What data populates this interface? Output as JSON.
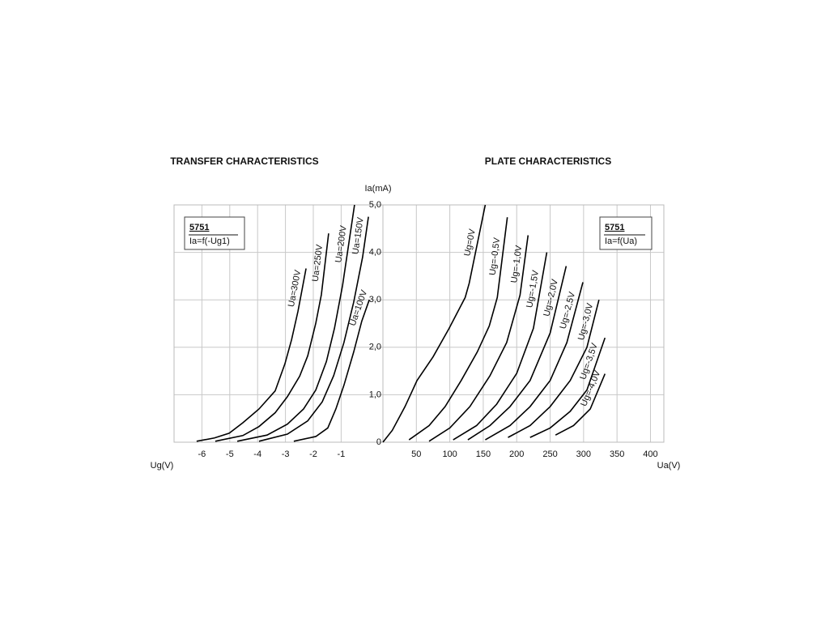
{
  "chart_data": [
    {
      "type": "line",
      "title": "TRANSFER CHARACTERISTICS",
      "x_label": "Ug(V)",
      "xlim": [
        -7,
        0.5
      ],
      "xticks": [
        -6,
        -5,
        -4,
        -3,
        -2,
        -1
      ],
      "ylim": [
        0,
        5
      ],
      "grid": true,
      "color": "#000000",
      "label_box": {
        "title": "5751",
        "formula": "Ia=f(-Ug1)"
      },
      "series": [
        {
          "name": "Ua=300V",
          "x": [
            -6.19,
            -5.55,
            -5.02,
            -4.53,
            -3.95,
            -3.37,
            -3.02,
            -2.78,
            -2.55,
            -2.26
          ],
          "values": [
            0.02,
            0.09,
            0.19,
            0.41,
            0.7,
            1.08,
            1.65,
            2.16,
            2.76,
            3.66
          ]
        },
        {
          "name": "Ua=250V",
          "x": [
            -5.52,
            -4.53,
            -3.95,
            -3.37,
            -2.93,
            -2.49,
            -2.2,
            -1.91,
            -1.71,
            -1.45
          ],
          "values": [
            0.02,
            0.14,
            0.33,
            0.62,
            0.96,
            1.39,
            1.82,
            2.51,
            3.11,
            4.4
          ]
        },
        {
          "name": "Ua=200V",
          "x": [
            -4.73,
            -3.66,
            -2.93,
            -2.35,
            -1.91,
            -1.53,
            -1.24,
            -0.95,
            -0.52
          ],
          "values": [
            0.02,
            0.15,
            0.38,
            0.7,
            1.1,
            1.7,
            2.4,
            3.3,
            5.0
          ]
        },
        {
          "name": "Ua=150V",
          "x": [
            -3.95,
            -2.93,
            -2.2,
            -1.68,
            -1.27,
            -0.9,
            -0.55,
            -0.23,
            -0.02
          ],
          "values": [
            0.02,
            0.17,
            0.45,
            0.85,
            1.4,
            2.1,
            2.95,
            3.9,
            4.75
          ]
        },
        {
          "name": "Ua=100V",
          "x": [
            -2.7,
            -1.91,
            -1.48,
            -1.19,
            -0.9,
            -0.55,
            -0.26,
            0.01
          ],
          "values": [
            0.02,
            0.12,
            0.3,
            0.7,
            1.2,
            1.9,
            2.55,
            3.0
          ]
        }
      ]
    },
    {
      "type": "line",
      "title": "PLATE CHARACTERISTICS",
      "x_label": "Ua(V)",
      "y_label": "Ia(mA)",
      "xlim": [
        0,
        420
      ],
      "xticks": [
        50,
        100,
        150,
        200,
        250,
        300,
        350,
        400
      ],
      "ylim": [
        0,
        5
      ],
      "yticks": [
        0,
        {
          "value": 1,
          "label": "1,0"
        },
        {
          "value": 2,
          "label": "2,0"
        },
        {
          "value": 3,
          "label": "3,0"
        },
        {
          "value": 4,
          "label": "4,0"
        },
        {
          "value": 5,
          "label": "5,0"
        }
      ],
      "grid": true,
      "color": "#000000",
      "label_box": {
        "title": "5751",
        "formula": "Ia=f(Ua)"
      },
      "series": [
        {
          "name": "Ug=0V",
          "x": [
            0,
            14,
            33,
            51,
            75,
            99,
            123,
            129,
            153
          ],
          "values": [
            0,
            0.25,
            0.75,
            1.3,
            1.8,
            2.4,
            3.05,
            3.35,
            5.0
          ]
        },
        {
          "name": "Ug=-0,5V",
          "x": [
            39,
            69,
            93,
            117,
            141,
            159,
            171,
            186
          ],
          "values": [
            0.05,
            0.35,
            0.75,
            1.3,
            1.9,
            2.45,
            3.05,
            4.74
          ]
        },
        {
          "name": "Ug=-1,0V",
          "x": [
            69,
            100,
            130,
            160,
            185,
            205,
            217
          ],
          "values": [
            0.02,
            0.3,
            0.75,
            1.4,
            2.1,
            3.1,
            4.36
          ]
        },
        {
          "name": "Ug=-1,5V",
          "x": [
            105,
            140,
            170,
            200,
            225,
            245
          ],
          "values": [
            0.05,
            0.35,
            0.8,
            1.45,
            2.4,
            4.0
          ]
        },
        {
          "name": "Ug=-2,0V",
          "x": [
            127,
            160,
            190,
            220,
            250,
            274
          ],
          "values": [
            0.05,
            0.35,
            0.75,
            1.3,
            2.3,
            3.71
          ]
        },
        {
          "name": "Ug=-2,5V",
          "x": [
            153,
            190,
            220,
            250,
            275,
            299
          ],
          "values": [
            0.05,
            0.35,
            0.75,
            1.3,
            2.1,
            3.37
          ]
        },
        {
          "name": "Ug=-3,0V",
          "x": [
            187,
            220,
            250,
            280,
            305,
            323
          ],
          "values": [
            0.1,
            0.35,
            0.75,
            1.3,
            2.0,
            3.0
          ]
        },
        {
          "name": "Ug=-3,5V",
          "x": [
            220,
            250,
            280,
            305,
            332
          ],
          "values": [
            0.1,
            0.3,
            0.65,
            1.1,
            2.2
          ]
        },
        {
          "name": "Ug=-4,0V",
          "x": [
            258,
            285,
            310,
            332
          ],
          "values": [
            0.15,
            0.35,
            0.7,
            1.44
          ]
        }
      ]
    }
  ]
}
